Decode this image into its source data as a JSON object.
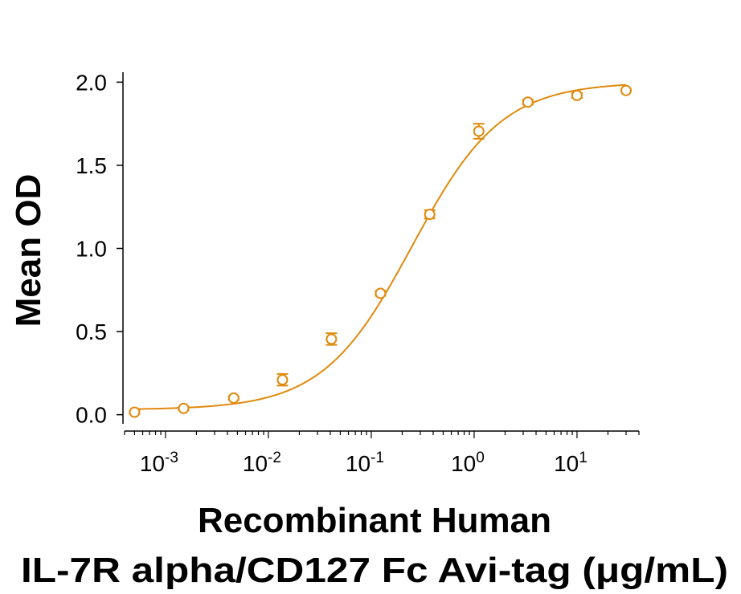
{
  "chart_data": {
    "type": "scatter",
    "xlabel_line1": "Recombinant Human",
    "xlabel_line2": "IL-7R alpha/CD127 Fc Avi-tag (μg/mL)",
    "ylabel": "Mean OD",
    "xscale": "log",
    "xlim": [
      0.0004,
      40
    ],
    "ylim": [
      -0.05,
      2.05
    ],
    "yticks": [
      {
        "value": 0.0,
        "label": "0.0"
      },
      {
        "value": 0.5,
        "label": "0.5"
      },
      {
        "value": 1.0,
        "label": "1.0"
      },
      {
        "value": 1.5,
        "label": "1.5"
      },
      {
        "value": 2.0,
        "label": "2.0"
      }
    ],
    "xticks": [
      {
        "value": 0.001,
        "base": "10",
        "exp": "-3"
      },
      {
        "value": 0.01,
        "base": "10",
        "exp": "-2"
      },
      {
        "value": 0.1,
        "base": "10",
        "exp": "-1"
      },
      {
        "value": 1,
        "base": "10",
        "exp": "0"
      },
      {
        "value": 10,
        "base": "10",
        "exp": "1"
      }
    ],
    "series": [
      {
        "color": "#e08a0c",
        "points": [
          {
            "x": 0.0005,
            "y": 0.015,
            "err": 0.01
          },
          {
            "x": 0.0015,
            "y": 0.038,
            "err": 0.01
          },
          {
            "x": 0.0046,
            "y": 0.1,
            "err": 0.01
          },
          {
            "x": 0.0137,
            "y": 0.21,
            "err": 0.035
          },
          {
            "x": 0.041,
            "y": 0.455,
            "err": 0.035
          },
          {
            "x": 0.123,
            "y": 0.73,
            "err": 0.015
          },
          {
            "x": 0.37,
            "y": 1.205,
            "err": 0.025
          },
          {
            "x": 1.11,
            "y": 1.705,
            "err": 0.045
          },
          {
            "x": 3.33,
            "y": 1.88,
            "err": 0.015
          },
          {
            "x": 10,
            "y": 1.92,
            "err": 0.015
          },
          {
            "x": 30,
            "y": 1.95,
            "err": 0.0
          }
        ],
        "fit": {
          "model": "4PL",
          "bottom": 0.03,
          "top": 2.0,
          "ec50": 0.25,
          "hill": 1.0
        }
      }
    ],
    "grid": false,
    "legend": "none"
  }
}
